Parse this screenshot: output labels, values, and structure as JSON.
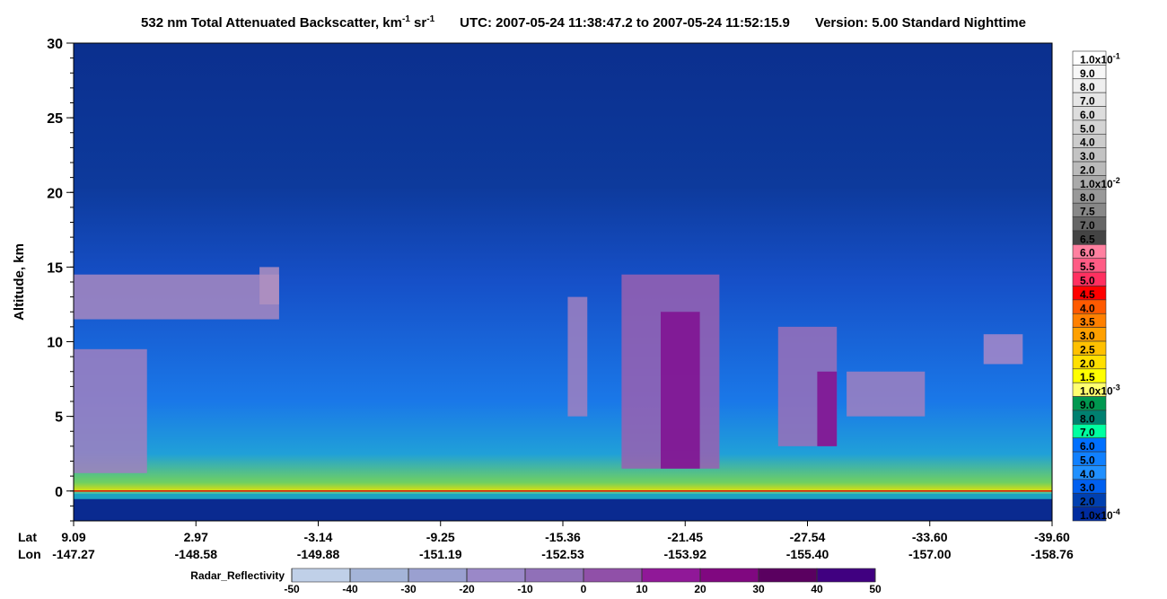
{
  "chart_data": {
    "type": "heatmap",
    "title": [
      {
        "text": "532 nm Total Attenuated Backscatter, km"
      },
      {
        "sup": "-1"
      },
      {
        "text": " sr"
      },
      {
        "sup": "-1"
      }
    ],
    "time_range": "UTC:  2007-05-24 11:38:47.2  to  2007-05-24 11:52:15.9",
    "version": "Version: 5.00  Standard  Nighttime",
    "ylabel": "Altitude, km",
    "ylim": [
      -2,
      30
    ],
    "yticks": [
      0,
      5,
      10,
      15,
      20,
      25,
      30
    ],
    "lat_label": "Lat",
    "lon_label": "Lon",
    "x_ticks": [
      {
        "lat": "9.09",
        "lon": "-147.27"
      },
      {
        "lat": "2.97",
        "lon": "-148.58"
      },
      {
        "lat": "-3.14",
        "lon": "-149.88"
      },
      {
        "lat": "-9.25",
        "lon": "-151.19"
      },
      {
        "lat": "-15.36",
        "lon": "-152.53"
      },
      {
        "lat": "-21.45",
        "lon": "-153.92"
      },
      {
        "lat": "-27.54",
        "lon": "-155.40"
      },
      {
        "lat": "-33.60",
        "lon": "-157.00"
      },
      {
        "lat": "-39.60",
        "lon": "-158.76"
      }
    ],
    "colorbar": {
      "labels": [
        {
          "text": "1.0x10",
          "sup": "-1"
        },
        "9.0",
        "8.0",
        "7.0",
        "6.0",
        "5.0",
        "4.0",
        "3.0",
        "2.0",
        {
          "text": "1.0x10",
          "sup": "-2"
        },
        "8.0",
        "7.5",
        "7.0",
        "6.5",
        "6.0",
        "5.5",
        "5.0",
        "4.5",
        "4.0",
        "3.5",
        "3.0",
        "2.5",
        "2.0",
        "1.5",
        {
          "text": "1.0x10",
          "sup": "-3"
        },
        "9.0",
        "8.0",
        "7.0",
        "6.0",
        "5.0",
        "4.0",
        "3.0",
        "2.0",
        {
          "text": "1.0x10",
          "sup": "-4"
        }
      ],
      "colors": [
        "#ffffff",
        "#f7f7f7",
        "#efefef",
        "#e6e6e6",
        "#dddddd",
        "#d4d4d4",
        "#cccccc",
        "#c3c3c3",
        "#bababa",
        "#aaaaaa",
        "#999999",
        "#888888",
        "#666666",
        "#444444",
        "#ff80a0",
        "#ff5c85",
        "#ff3060",
        "#ff0000",
        "#ff5a00",
        "#ff8000",
        "#ffa000",
        "#ffc000",
        "#ffe000",
        "#ffff00",
        "#ffff70",
        "#009850",
        "#008070",
        "#00ffa0",
        "#0070ff",
        "#1080ff",
        "#2090ff",
        "#0060f0",
        "#0040b0",
        "#002ca0"
      ]
    },
    "radar": {
      "label": "Radar_Reflectivity",
      "ticks": [
        -50,
        -40,
        -30,
        -20,
        -10,
        0,
        10,
        20,
        30,
        40,
        50
      ],
      "colors": [
        "#c0d0e8",
        "#a4b4d8",
        "#9aa0d0",
        "#9a88c8",
        "#9070b8",
        "#9050a8",
        "#901898",
        "#800880",
        "#5a0060",
        "#400080"
      ]
    }
  }
}
